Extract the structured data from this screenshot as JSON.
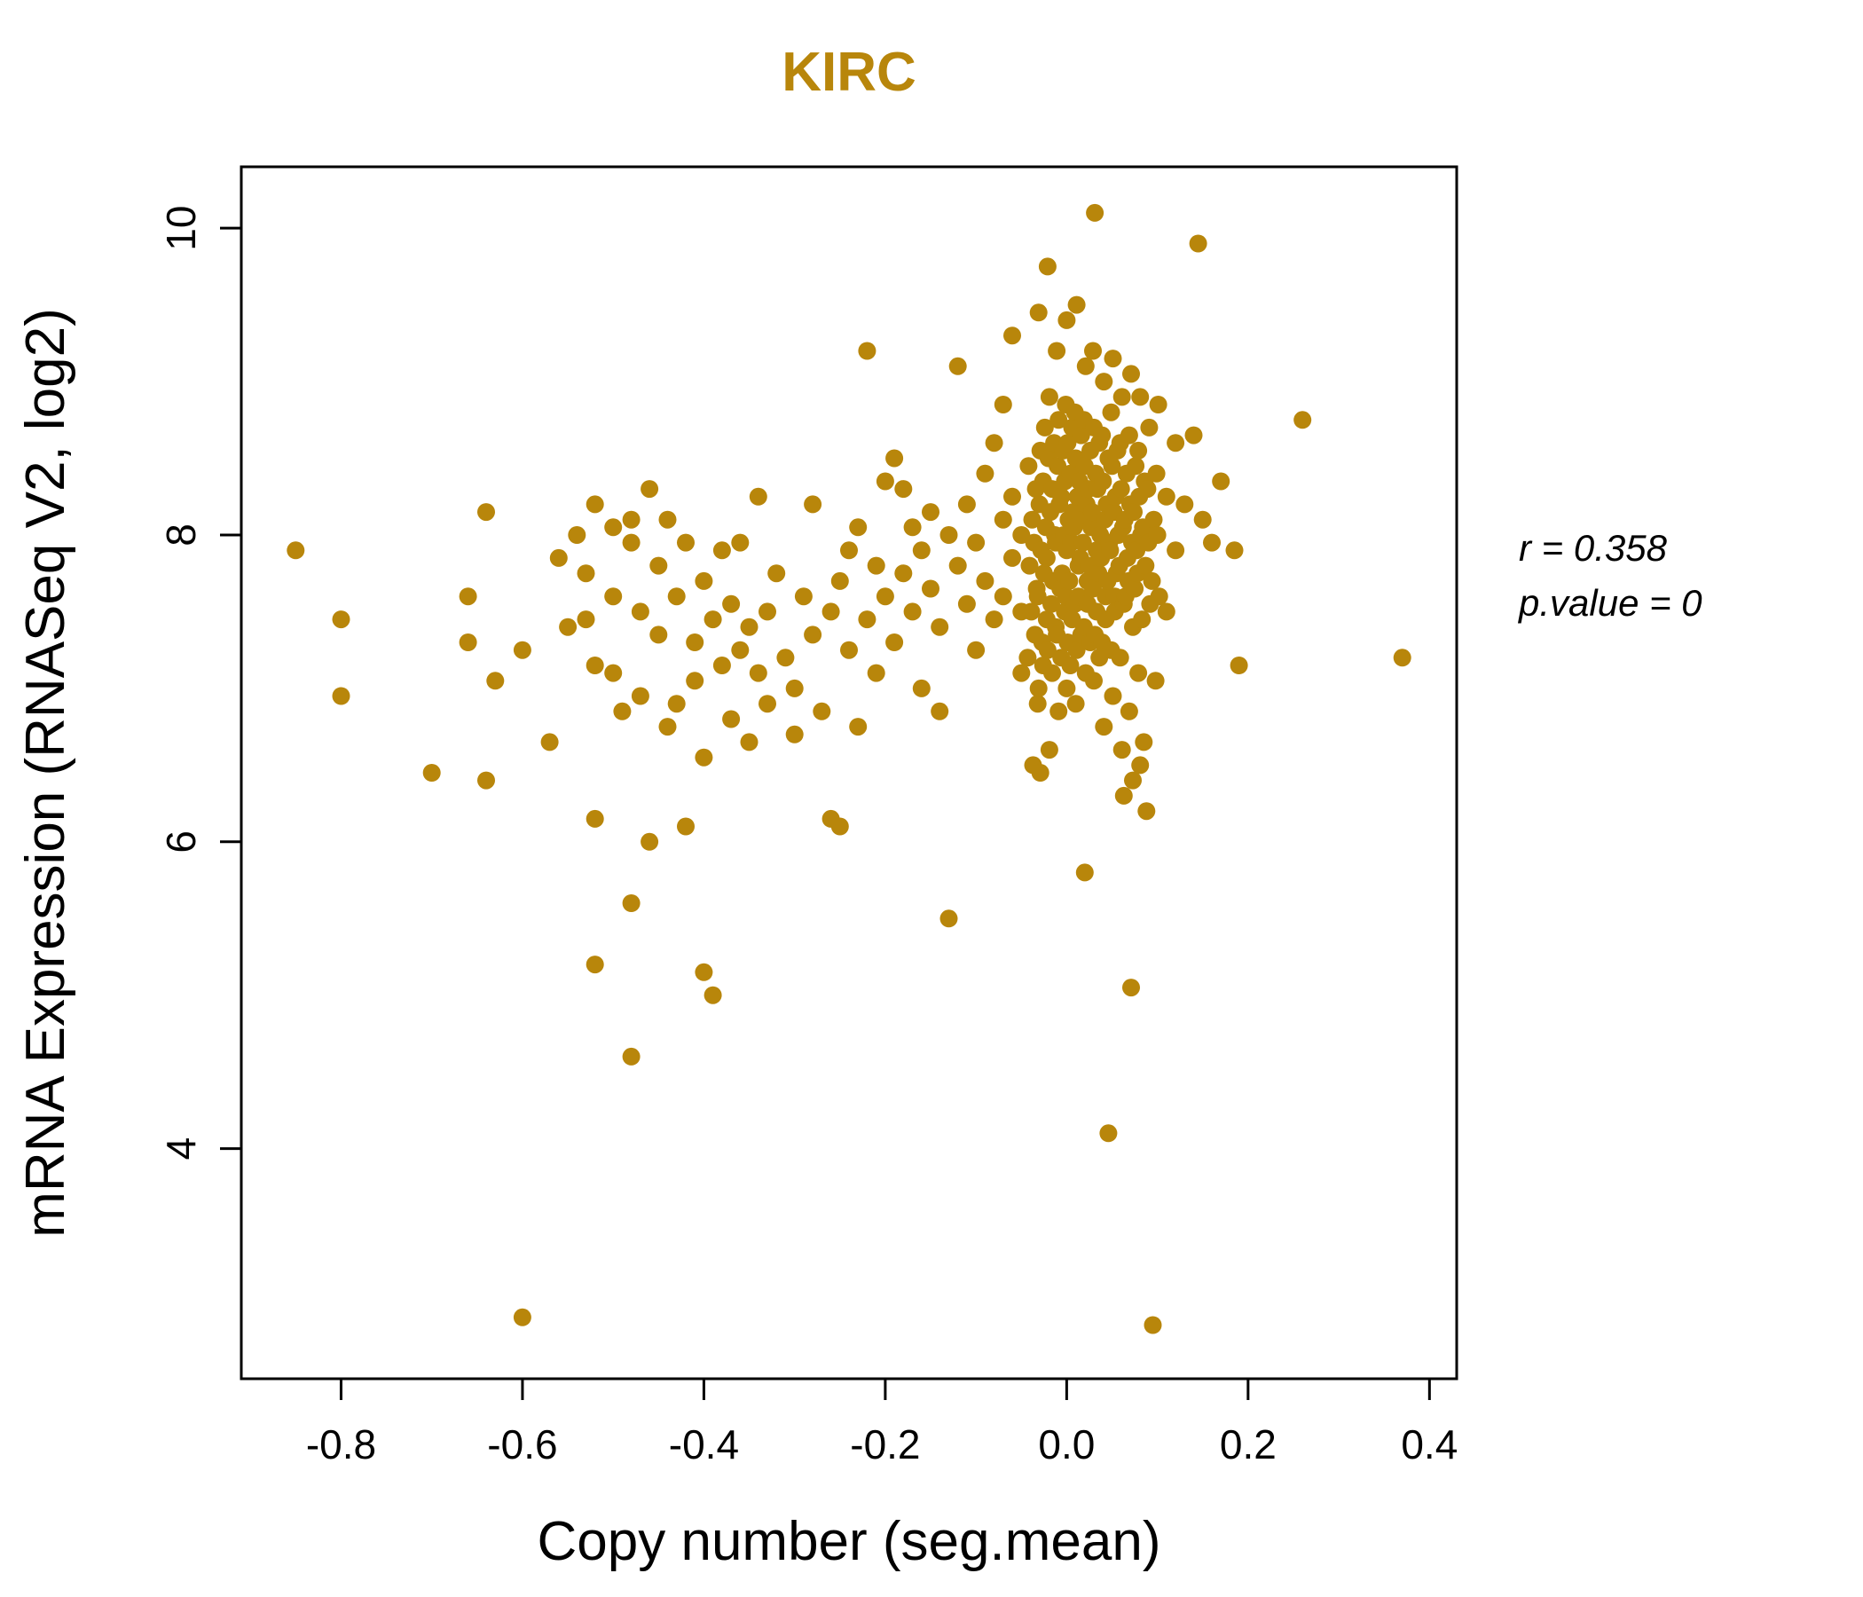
{
  "chart_data": {
    "type": "scatter",
    "title": "KIRC",
    "title_color": "#B8860B",
    "point_color": "#B8860B",
    "xlabel": "Copy number (seg.mean)",
    "ylabel": "mRNA Expression (RNASeq V2, log2)",
    "xlim": [
      -0.91,
      0.43
    ],
    "ylim": [
      2.5,
      10.4
    ],
    "grid": false,
    "legend": "none",
    "x_ticks": {
      "values": [
        -0.8,
        -0.6,
        -0.4,
        -0.2,
        0.0,
        0.2,
        0.4
      ],
      "labels": [
        "-0.8",
        "-0.6",
        "-0.4",
        "-0.2",
        "0.0",
        "0.2",
        "0.4"
      ]
    },
    "y_ticks": {
      "values": [
        4,
        6,
        8,
        10
      ],
      "labels": [
        "4",
        "6",
        "8",
        "10"
      ]
    },
    "annotation": {
      "line1": "r = 0.358",
      "line2": "p.value = 0"
    },
    "points": [
      [
        -0.85,
        7.9
      ],
      [
        -0.8,
        7.45
      ],
      [
        -0.8,
        6.95
      ],
      [
        -0.7,
        6.45
      ],
      [
        -0.66,
        7.6
      ],
      [
        -0.66,
        7.3
      ],
      [
        -0.64,
        8.15
      ],
      [
        -0.63,
        7.05
      ],
      [
        -0.64,
        6.4
      ],
      [
        -0.6,
        2.9
      ],
      [
        -0.6,
        7.25
      ],
      [
        -0.57,
        6.65
      ],
      [
        -0.55,
        7.4
      ],
      [
        -0.56,
        7.85
      ],
      [
        -0.54,
        8.0
      ],
      [
        -0.53,
        7.75
      ],
      [
        -0.53,
        7.45
      ],
      [
        -0.52,
        8.2
      ],
      [
        -0.52,
        7.15
      ],
      [
        -0.52,
        6.15
      ],
      [
        -0.52,
        5.2
      ],
      [
        -0.5,
        8.05
      ],
      [
        -0.5,
        7.6
      ],
      [
        -0.5,
        7.1
      ],
      [
        -0.49,
        6.85
      ],
      [
        -0.48,
        8.1
      ],
      [
        -0.48,
        7.95
      ],
      [
        -0.48,
        5.6
      ],
      [
        -0.48,
        4.6
      ],
      [
        -0.47,
        7.5
      ],
      [
        -0.47,
        6.95
      ],
      [
        -0.46,
        8.3
      ],
      [
        -0.46,
        6.0
      ],
      [
        -0.45,
        7.8
      ],
      [
        -0.45,
        7.35
      ],
      [
        -0.44,
        8.1
      ],
      [
        -0.44,
        6.75
      ],
      [
        -0.43,
        7.6
      ],
      [
        -0.43,
        6.9
      ],
      [
        -0.42,
        7.95
      ],
      [
        -0.42,
        6.1
      ],
      [
        -0.41,
        7.3
      ],
      [
        -0.41,
        7.05
      ],
      [
        -0.4,
        7.7
      ],
      [
        -0.4,
        6.55
      ],
      [
        -0.4,
        5.15
      ],
      [
        -0.39,
        7.45
      ],
      [
        -0.39,
        5.0
      ],
      [
        -0.38,
        7.9
      ],
      [
        -0.38,
        7.15
      ],
      [
        -0.37,
        7.55
      ],
      [
        -0.37,
        6.8
      ],
      [
        -0.36,
        7.95
      ],
      [
        -0.36,
        7.25
      ],
      [
        -0.35,
        7.4
      ],
      [
        -0.35,
        6.65
      ],
      [
        -0.34,
        8.25
      ],
      [
        -0.34,
        7.1
      ],
      [
        -0.33,
        7.5
      ],
      [
        -0.33,
        6.9
      ],
      [
        -0.32,
        7.75
      ],
      [
        -0.31,
        7.2
      ],
      [
        -0.3,
        7.0
      ],
      [
        -0.3,
        6.7
      ],
      [
        -0.29,
        7.6
      ],
      [
        -0.28,
        8.2
      ],
      [
        -0.28,
        7.35
      ],
      [
        -0.27,
        6.85
      ],
      [
        -0.26,
        7.5
      ],
      [
        -0.26,
        6.15
      ],
      [
        -0.25,
        7.7
      ],
      [
        -0.25,
        6.1
      ],
      [
        -0.24,
        7.9
      ],
      [
        -0.24,
        7.25
      ],
      [
        -0.23,
        8.05
      ],
      [
        -0.23,
        6.75
      ],
      [
        -0.22,
        9.2
      ],
      [
        -0.22,
        7.45
      ],
      [
        -0.21,
        7.8
      ],
      [
        -0.21,
        7.1
      ],
      [
        -0.2,
        8.35
      ],
      [
        -0.2,
        7.6
      ],
      [
        -0.19,
        8.5
      ],
      [
        -0.19,
        7.3
      ],
      [
        -0.18,
        8.3
      ],
      [
        -0.18,
        7.75
      ],
      [
        -0.17,
        8.05
      ],
      [
        -0.17,
        7.5
      ],
      [
        -0.16,
        7.9
      ],
      [
        -0.16,
        7.0
      ],
      [
        -0.15,
        8.15
      ],
      [
        -0.15,
        7.65
      ],
      [
        -0.14,
        7.4
      ],
      [
        -0.14,
        6.85
      ],
      [
        -0.13,
        8.0
      ],
      [
        -0.13,
        5.5
      ],
      [
        -0.12,
        9.1
      ],
      [
        -0.12,
        7.8
      ],
      [
        -0.11,
        8.2
      ],
      [
        -0.11,
        7.55
      ],
      [
        -0.1,
        7.95
      ],
      [
        -0.1,
        7.25
      ],
      [
        -0.09,
        8.4
      ],
      [
        -0.09,
        7.7
      ],
      [
        -0.08,
        8.6
      ],
      [
        -0.08,
        7.45
      ],
      [
        -0.07,
        8.85
      ],
      [
        -0.07,
        8.1
      ],
      [
        -0.07,
        7.6
      ],
      [
        -0.06,
        9.3
      ],
      [
        -0.06,
        8.25
      ],
      [
        -0.06,
        7.85
      ],
      [
        -0.05,
        8.0
      ],
      [
        -0.05,
        7.5
      ],
      [
        -0.05,
        7.1
      ],
      [
        -0.042,
        8.45
      ],
      [
        -0.038,
        8.1
      ],
      [
        -0.041,
        7.8
      ],
      [
        -0.039,
        7.5
      ],
      [
        -0.043,
        7.2
      ],
      [
        -0.037,
        6.5
      ],
      [
        -0.034,
        8.3
      ],
      [
        -0.036,
        7.95
      ],
      [
        -0.033,
        7.65
      ],
      [
        -0.035,
        7.35
      ],
      [
        -0.032,
        6.9
      ],
      [
        -0.031,
        9.45
      ],
      [
        -0.029,
        8.55
      ],
      [
        -0.03,
        8.2
      ],
      [
        -0.028,
        7.9
      ],
      [
        -0.032,
        7.6
      ],
      [
        -0.027,
        7.3
      ],
      [
        -0.031,
        7.0
      ],
      [
        -0.029,
        6.45
      ],
      [
        -0.024,
        8.7
      ],
      [
        -0.026,
        8.35
      ],
      [
        -0.023,
        8.05
      ],
      [
        -0.025,
        7.75
      ],
      [
        -0.022,
        7.45
      ],
      [
        -0.026,
        7.15
      ],
      [
        -0.021,
        9.75
      ],
      [
        -0.019,
        8.9
      ],
      [
        -0.02,
        8.5
      ],
      [
        -0.018,
        8.15
      ],
      [
        -0.022,
        7.85
      ],
      [
        -0.017,
        7.55
      ],
      [
        -0.021,
        7.25
      ],
      [
        -0.019,
        6.6
      ],
      [
        -0.014,
        8.6
      ],
      [
        -0.016,
        8.3
      ],
      [
        -0.013,
        8.0
      ],
      [
        -0.015,
        7.7
      ],
      [
        -0.012,
        7.4
      ],
      [
        -0.016,
        7.1
      ],
      [
        -0.011,
        9.2
      ],
      [
        -0.009,
        8.75
      ],
      [
        -0.01,
        8.45
      ],
      [
        -0.008,
        8.2
      ],
      [
        -0.012,
        7.95
      ],
      [
        -0.007,
        7.65
      ],
      [
        -0.011,
        7.35
      ],
      [
        -0.009,
        6.85
      ],
      [
        -0.004,
        8.55
      ],
      [
        -0.006,
        8.25
      ],
      [
        -0.003,
        8.0
      ],
      [
        -0.005,
        7.75
      ],
      [
        -0.002,
        7.5
      ],
      [
        -0.006,
        7.2
      ],
      [
        0.0,
        9.4
      ],
      [
        -0.001,
        8.85
      ],
      [
        0.001,
        8.6
      ],
      [
        -0.002,
        8.35
      ],
      [
        0.002,
        8.1
      ],
      [
        0.0,
        7.9
      ],
      [
        -0.001,
        7.6
      ],
      [
        0.001,
        7.3
      ],
      [
        0.0,
        7.0
      ],
      [
        0.006,
        8.7
      ],
      [
        0.004,
        8.4
      ],
      [
        0.007,
        8.15
      ],
      [
        0.005,
        7.95
      ],
      [
        0.003,
        7.7
      ],
      [
        0.006,
        7.45
      ],
      [
        0.004,
        7.15
      ],
      [
        0.011,
        9.5
      ],
      [
        0.009,
        8.8
      ],
      [
        0.01,
        8.5
      ],
      [
        0.012,
        8.25
      ],
      [
        0.008,
        8.05
      ],
      [
        0.013,
        7.8
      ],
      [
        0.009,
        7.55
      ],
      [
        0.011,
        7.25
      ],
      [
        0.01,
        6.9
      ],
      [
        0.016,
        8.65
      ],
      [
        0.014,
        8.35
      ],
      [
        0.017,
        8.1
      ],
      [
        0.015,
        7.85
      ],
      [
        0.013,
        7.6
      ],
      [
        0.016,
        7.35
      ],
      [
        0.021,
        9.1
      ],
      [
        0.019,
        8.75
      ],
      [
        0.02,
        8.45
      ],
      [
        0.022,
        8.2
      ],
      [
        0.018,
        7.95
      ],
      [
        0.023,
        7.7
      ],
      [
        0.019,
        7.4
      ],
      [
        0.021,
        7.1
      ],
      [
        0.02,
        5.8
      ],
      [
        0.026,
        8.55
      ],
      [
        0.024,
        8.3
      ],
      [
        0.027,
        8.05
      ],
      [
        0.025,
        7.8
      ],
      [
        0.023,
        7.55
      ],
      [
        0.026,
        7.3
      ],
      [
        0.031,
        10.1
      ],
      [
        0.029,
        9.2
      ],
      [
        0.03,
        8.7
      ],
      [
        0.032,
        8.4
      ],
      [
        0.028,
        8.15
      ],
      [
        0.033,
        7.9
      ],
      [
        0.029,
        7.65
      ],
      [
        0.031,
        7.35
      ],
      [
        0.03,
        7.05
      ],
      [
        0.036,
        8.6
      ],
      [
        0.034,
        8.3
      ],
      [
        0.037,
        8.0
      ],
      [
        0.035,
        7.75
      ],
      [
        0.033,
        7.5
      ],
      [
        0.036,
        7.2
      ],
      [
        0.041,
        9.0
      ],
      [
        0.039,
        8.65
      ],
      [
        0.04,
        8.35
      ],
      [
        0.042,
        8.1
      ],
      [
        0.038,
        7.85
      ],
      [
        0.043,
        7.6
      ],
      [
        0.039,
        7.3
      ],
      [
        0.041,
        6.75
      ],
      [
        0.046,
        8.5
      ],
      [
        0.044,
        8.2
      ],
      [
        0.047,
        7.95
      ],
      [
        0.045,
        7.7
      ],
      [
        0.043,
        7.45
      ],
      [
        0.046,
        4.1
      ],
      [
        0.051,
        9.15
      ],
      [
        0.049,
        8.8
      ],
      [
        0.05,
        8.45
      ],
      [
        0.052,
        8.15
      ],
      [
        0.048,
        7.9
      ],
      [
        0.053,
        7.6
      ],
      [
        0.049,
        7.25
      ],
      [
        0.051,
        6.95
      ],
      [
        0.056,
        8.55
      ],
      [
        0.054,
        8.25
      ],
      [
        0.057,
        8.0
      ],
      [
        0.055,
        7.75
      ],
      [
        0.053,
        7.5
      ],
      [
        0.061,
        8.9
      ],
      [
        0.059,
        8.6
      ],
      [
        0.06,
        8.3
      ],
      [
        0.062,
        8.05
      ],
      [
        0.058,
        7.8
      ],
      [
        0.063,
        7.55
      ],
      [
        0.059,
        7.2
      ],
      [
        0.061,
        6.6
      ],
      [
        0.066,
        8.4
      ],
      [
        0.064,
        8.1
      ],
      [
        0.067,
        7.85
      ],
      [
        0.065,
        7.6
      ],
      [
        0.063,
        6.3
      ],
      [
        0.071,
        9.05
      ],
      [
        0.069,
        8.65
      ],
      [
        0.07,
        8.2
      ],
      [
        0.072,
        7.95
      ],
      [
        0.068,
        7.7
      ],
      [
        0.073,
        7.4
      ],
      [
        0.069,
        6.85
      ],
      [
        0.071,
        5.05
      ],
      [
        0.076,
        8.45
      ],
      [
        0.074,
        8.15
      ],
      [
        0.077,
        7.9
      ],
      [
        0.075,
        7.65
      ],
      [
        0.073,
        6.4
      ],
      [
        0.081,
        8.9
      ],
      [
        0.079,
        8.55
      ],
      [
        0.08,
        8.25
      ],
      [
        0.082,
        8.0
      ],
      [
        0.078,
        7.75
      ],
      [
        0.083,
        7.45
      ],
      [
        0.079,
        7.1
      ],
      [
        0.081,
        6.5
      ],
      [
        0.086,
        8.35
      ],
      [
        0.084,
        8.05
      ],
      [
        0.087,
        7.8
      ],
      [
        0.085,
        6.65
      ],
      [
        0.091,
        8.7
      ],
      [
        0.089,
        8.3
      ],
      [
        0.09,
        7.95
      ],
      [
        0.092,
        7.55
      ],
      [
        0.088,
        6.2
      ],
      [
        0.096,
        8.1
      ],
      [
        0.094,
        7.7
      ],
      [
        0.095,
        2.85
      ],
      [
        0.101,
        8.85
      ],
      [
        0.099,
        8.4
      ],
      [
        0.1,
        8.0
      ],
      [
        0.102,
        7.6
      ],
      [
        0.098,
        7.05
      ],
      [
        0.11,
        8.25
      ],
      [
        0.11,
        7.5
      ],
      [
        0.12,
        8.6
      ],
      [
        0.12,
        7.9
      ],
      [
        0.145,
        9.9
      ],
      [
        0.13,
        8.2
      ],
      [
        0.14,
        8.65
      ],
      [
        0.15,
        8.1
      ],
      [
        0.16,
        7.95
      ],
      [
        0.17,
        8.35
      ],
      [
        0.185,
        7.9
      ],
      [
        0.19,
        7.15
      ],
      [
        0.26,
        8.75
      ],
      [
        0.37,
        7.2
      ]
    ]
  }
}
